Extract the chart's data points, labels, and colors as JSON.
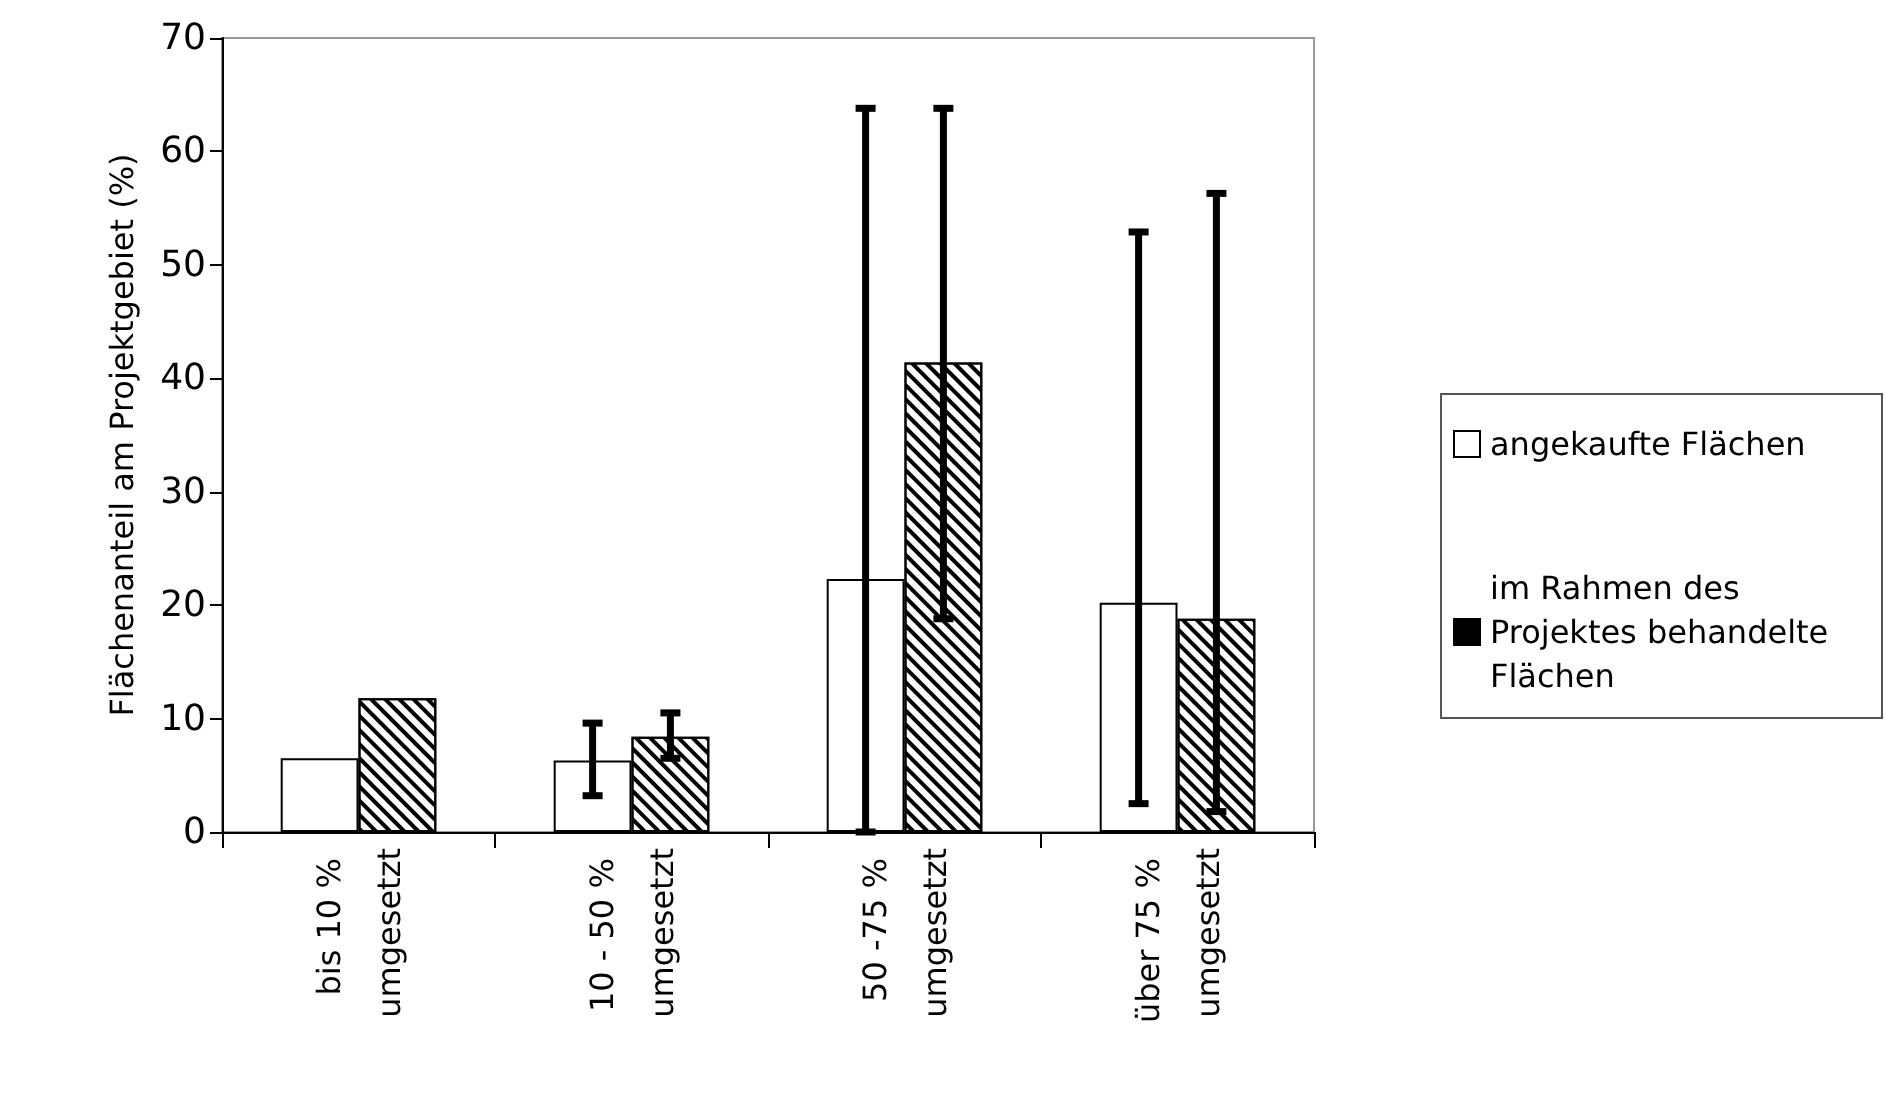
{
  "chart_data": {
    "type": "bar",
    "ylabel": "Flächenanteil am Projektgebiet (%)",
    "categories": [
      "bis 10 % umgesetzt",
      "10 - 50 % umgesetzt",
      "50 -75 % umgesetzt",
      "über 75 % umgesetzt"
    ],
    "series": [
      {
        "name": "angekaufte Flächen",
        "color": "#ffffff",
        "values": [
          6.5,
          6.3,
          22.3,
          20.2
        ],
        "errors": [
          null,
          [
            3.2,
            9.6
          ],
          [
            0,
            63.8
          ],
          [
            2.5,
            52.9
          ]
        ]
      },
      {
        "name": "im Rahmen des Projektes behandelte Flächen",
        "color": "#000000",
        "values": [
          11.8,
          8.4,
          41.4,
          18.8
        ],
        "errors": [
          null,
          [
            6.5,
            10.5
          ],
          [
            18.8,
            63.8
          ],
          [
            1.8,
            56.3
          ]
        ]
      }
    ],
    "ylim": [
      0,
      70
    ],
    "yticks": [
      0,
      10,
      20,
      30,
      40,
      50,
      60,
      70
    ],
    "grid": false,
    "legend": "right"
  }
}
